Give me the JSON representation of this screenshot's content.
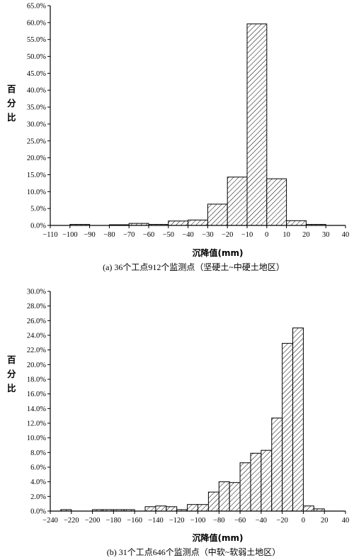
{
  "chart_data": [
    {
      "type": "bar",
      "xlabel": "沉降值(mm)",
      "ylabel": "百分比",
      "caption": "(a) 36个工点912个监测点（坚硬土~中硬土地区）",
      "xlim": [
        -110,
        40
      ],
      "xticks": [
        -110,
        -100,
        -90,
        -80,
        -70,
        -60,
        -50,
        -40,
        -30,
        -20,
        -10,
        0,
        10,
        20,
        30,
        40
      ],
      "ylim": [
        0,
        65
      ],
      "yticks": [
        0,
        5,
        10,
        15,
        20,
        25,
        30,
        35,
        40,
        45,
        50,
        55,
        60,
        65
      ],
      "ytick_labels": [
        "0.0%",
        "5.0%",
        "10.0%",
        "15.0%",
        "20.0%",
        "25.0%",
        "30.0%",
        "35.0%",
        "40.0%",
        "45.0%",
        "50.0%",
        "55.0%",
        "60.0%",
        "65.0%"
      ],
      "bins": [
        {
          "x0": -100,
          "x1": -90,
          "value": 0.3
        },
        {
          "x0": -80,
          "x1": -70,
          "value": 0.2
        },
        {
          "x0": -70,
          "x1": -60,
          "value": 0.6
        },
        {
          "x0": -60,
          "x1": -50,
          "value": 0.3
        },
        {
          "x0": -50,
          "x1": -40,
          "value": 1.3
        },
        {
          "x0": -40,
          "x1": -30,
          "value": 1.6
        },
        {
          "x0": -30,
          "x1": -20,
          "value": 6.3
        },
        {
          "x0": -20,
          "x1": -10,
          "value": 14.3
        },
        {
          "x0": -10,
          "x1": 0,
          "value": 59.6
        },
        {
          "x0": 0,
          "x1": 10,
          "value": 13.8
        },
        {
          "x0": 10,
          "x1": 20,
          "value": 1.4
        },
        {
          "x0": 20,
          "x1": 30,
          "value": 0.3
        }
      ]
    },
    {
      "type": "bar",
      "xlabel": "沉降值(mm)",
      "ylabel": "百分比",
      "caption": "(b) 31个工点646个监测点（中软~软弱土地区）",
      "xlim": [
        -240,
        40
      ],
      "xticks": [
        -240,
        -220,
        -200,
        -180,
        -160,
        -140,
        -120,
        -100,
        -80,
        -60,
        -40,
        -20,
        0,
        20,
        40
      ],
      "ylim": [
        0,
        30
      ],
      "yticks": [
        0,
        2,
        4,
        6,
        8,
        10,
        12,
        14,
        16,
        18,
        20,
        22,
        24,
        26,
        28,
        30
      ],
      "ytick_labels": [
        "0.0%",
        "2.0%",
        "4.0%",
        "6.0%",
        "8.0%",
        "10.0%",
        "12.0%",
        "14.0%",
        "16.0%",
        "18.0%",
        "20.0%",
        "22.0%",
        "24.0%",
        "26.0%",
        "28.0%",
        "30.0%"
      ],
      "bins": [
        {
          "x0": -230,
          "x1": -220,
          "value": 0.2
        },
        {
          "x0": -200,
          "x1": -190,
          "value": 0.2
        },
        {
          "x0": -190,
          "x1": -180,
          "value": 0.2
        },
        {
          "x0": -180,
          "x1": -170,
          "value": 0.2
        },
        {
          "x0": -170,
          "x1": -160,
          "value": 0.2
        },
        {
          "x0": -150,
          "x1": -140,
          "value": 0.6
        },
        {
          "x0": -140,
          "x1": -130,
          "value": 0.7
        },
        {
          "x0": -130,
          "x1": -120,
          "value": 0.6
        },
        {
          "x0": -120,
          "x1": -110,
          "value": 0.2
        },
        {
          "x0": -110,
          "x1": -100,
          "value": 0.9
        },
        {
          "x0": -100,
          "x1": -90,
          "value": 0.9
        },
        {
          "x0": -90,
          "x1": -80,
          "value": 2.6
        },
        {
          "x0": -80,
          "x1": -70,
          "value": 4.0
        },
        {
          "x0": -70,
          "x1": -60,
          "value": 3.9
        },
        {
          "x0": -60,
          "x1": -50,
          "value": 6.6
        },
        {
          "x0": -50,
          "x1": -40,
          "value": 7.9
        },
        {
          "x0": -40,
          "x1": -30,
          "value": 8.3
        },
        {
          "x0": -30,
          "x1": -20,
          "value": 12.7
        },
        {
          "x0": -20,
          "x1": -10,
          "value": 22.9
        },
        {
          "x0": -10,
          "x1": 0,
          "value": 25.0
        },
        {
          "x0": 0,
          "x1": 10,
          "value": 0.7
        },
        {
          "x0": 10,
          "x1": 20,
          "value": 0.3
        }
      ]
    }
  ]
}
